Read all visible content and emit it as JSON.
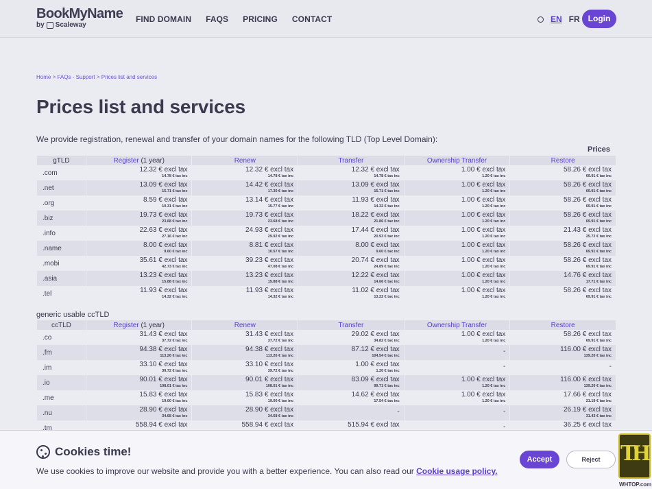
{
  "header": {
    "logo_main": "BookMyName",
    "logo_by": "by",
    "logo_brand": "Scaleway",
    "nav": [
      "FIND DOMAIN",
      "FAQS",
      "PRICING",
      "CONTACT"
    ],
    "lang_en": "EN",
    "lang_fr": "FR",
    "login": "Login"
  },
  "breadcrumb": {
    "home": "Home",
    "faqs": "FAQs - Support",
    "current": "Prices list and services",
    "sep": ">"
  },
  "page_title": "Prices list and services",
  "intro": "We provide registration, renewal and transfer of your domain names for the following TLD (Top Level Domain):",
  "prices_label": "Prices",
  "gtld_table": {
    "headers": {
      "tld": "gTLD",
      "register_link": "Register",
      "register_suffix": " (1 year)",
      "renew": "Renew",
      "transfer": "Transfer",
      "ownership": "Ownership Transfer",
      "restore": "Restore"
    },
    "rows": [
      {
        "tld": ".com",
        "cells": [
          [
            "12.32 € excl tax",
            "14.78 € tax inc"
          ],
          [
            "12.32 € excl tax",
            "14.78 € tax inc"
          ],
          [
            "12.32 € excl tax",
            "14.78 € tax inc"
          ],
          [
            "1.00 € excl tax",
            "1.20 € tax inc"
          ],
          [
            "58.26 € excl tax",
            "69.91 € tax inc"
          ]
        ]
      },
      {
        "tld": ".net",
        "cells": [
          [
            "13.09 € excl tax",
            "15.71 € tax inc"
          ],
          [
            "14.42 € excl tax",
            "17.30 € tax inc"
          ],
          [
            "13.09 € excl tax",
            "15.71 € tax inc"
          ],
          [
            "1.00 € excl tax",
            "1.20 € tax inc"
          ],
          [
            "58.26 € excl tax",
            "69.91 € tax inc"
          ]
        ]
      },
      {
        "tld": ".org",
        "cells": [
          [
            "8.59 € excl tax",
            "10.31 € tax inc"
          ],
          [
            "13.14 € excl tax",
            "15.77 € tax inc"
          ],
          [
            "11.93 € excl tax",
            "14.32 € tax inc"
          ],
          [
            "1.00 € excl tax",
            "1.20 € tax inc"
          ],
          [
            "58.26 € excl tax",
            "69.91 € tax inc"
          ]
        ]
      },
      {
        "tld": ".biz",
        "cells": [
          [
            "19.73 € excl tax",
            "23.68 € tax inc"
          ],
          [
            "19.73 € excl tax",
            "23.68 € tax inc"
          ],
          [
            "18.22 € excl tax",
            "21.86 € tax inc"
          ],
          [
            "1.00 € excl tax",
            "1.20 € tax inc"
          ],
          [
            "58.26 € excl tax",
            "69.91 € tax inc"
          ]
        ]
      },
      {
        "tld": ".info",
        "cells": [
          [
            "22.63 € excl tax",
            "27.16 € tax inc"
          ],
          [
            "24.93 € excl tax",
            "29.92 € tax inc"
          ],
          [
            "17.44 € excl tax",
            "20.93 € tax inc"
          ],
          [
            "1.00 € excl tax",
            "1.20 € tax inc"
          ],
          [
            "21.43 € excl tax",
            "25.72 € tax inc"
          ]
        ]
      },
      {
        "tld": ".name",
        "cells": [
          [
            "8.00 € excl tax",
            "9.60 € tax inc"
          ],
          [
            "8.81 € excl tax",
            "10.57 € tax inc"
          ],
          [
            "8.00 € excl tax",
            "9.60 € tax inc"
          ],
          [
            "1.00 € excl tax",
            "1.20 € tax inc"
          ],
          [
            "58.26 € excl tax",
            "69.91 € tax inc"
          ]
        ]
      },
      {
        "tld": ".mobi",
        "cells": [
          [
            "35.61 € excl tax",
            "42.73 € tax inc"
          ],
          [
            "39.23 € excl tax",
            "47.08 € tax inc"
          ],
          [
            "20.74 € excl tax",
            "24.89 € tax inc"
          ],
          [
            "1.00 € excl tax",
            "1.20 € tax inc"
          ],
          [
            "58.26 € excl tax",
            "69.91 € tax inc"
          ]
        ]
      },
      {
        "tld": ".asia",
        "cells": [
          [
            "13.23 € excl tax",
            "15.88 € tax inc"
          ],
          [
            "13.23 € excl tax",
            "15.88 € tax inc"
          ],
          [
            "12.22 € excl tax",
            "14.66 € tax inc"
          ],
          [
            "1.00 € excl tax",
            "1.20 € tax inc"
          ],
          [
            "14.76 € excl tax",
            "17.71 € tax inc"
          ]
        ]
      },
      {
        "tld": ".tel",
        "cells": [
          [
            "11.93 € excl tax",
            "14.32 € tax inc"
          ],
          [
            "11.93 € excl tax",
            "14.32 € tax inc"
          ],
          [
            "11.02 € excl tax",
            "13.22 € tax inc"
          ],
          [
            "1.00 € excl tax",
            "1.20 € tax inc"
          ],
          [
            "58.26 € excl tax",
            "69.91 € tax inc"
          ]
        ]
      }
    ]
  },
  "cctld_section_label": "generic usable ccTLD",
  "cctld_table": {
    "headers": {
      "tld": "ccTLD",
      "register_link": "Register",
      "register_suffix": " (1 year)",
      "renew": "Renew",
      "transfer": "Transfer",
      "ownership": "Ownership Transfer",
      "restore": "Restore"
    },
    "rows": [
      {
        "tld": ".co",
        "cells": [
          [
            "31.43 € excl tax",
            "37.72 € tax inc"
          ],
          [
            "31.43 € excl tax",
            "37.72 € tax inc"
          ],
          [
            "29.02 € excl tax",
            "34.82 € tax inc"
          ],
          [
            "1.00 € excl tax",
            "1.20 € tax inc"
          ],
          [
            "58.26 € excl tax",
            "69.91 € tax inc"
          ]
        ]
      },
      {
        "tld": ".fm",
        "cells": [
          [
            "94.38 € excl tax",
            "113.26 € tax inc"
          ],
          [
            "94.38 € excl tax",
            "113.26 € tax inc"
          ],
          [
            "87.12 € excl tax",
            "104.54 € tax inc"
          ],
          [
            "-",
            ""
          ],
          [
            "116.00 € excl tax",
            "139.20 € tax inc"
          ]
        ]
      },
      {
        "tld": ".im",
        "cells": [
          [
            "33.10 € excl tax",
            "39.72 € tax inc"
          ],
          [
            "33.10 € excl tax",
            "39.72 € tax inc"
          ],
          [
            "1.00 € excl tax",
            "1.20 € tax inc"
          ],
          [
            "-",
            ""
          ],
          [
            "-",
            ""
          ]
        ]
      },
      {
        "tld": ".io",
        "cells": [
          [
            "90.01 € excl tax",
            "108.01 € tax inc"
          ],
          [
            "90.01 € excl tax",
            "108.01 € tax inc"
          ],
          [
            "83.09 € excl tax",
            "99.71 € tax inc"
          ],
          [
            "1.00 € excl tax",
            "1.20 € tax inc"
          ],
          [
            "116.00 € excl tax",
            "139.20 € tax inc"
          ]
        ]
      },
      {
        "tld": ".me",
        "cells": [
          [
            "15.83 € excl tax",
            "19.00 € tax inc"
          ],
          [
            "15.83 € excl tax",
            "19.00 € tax inc"
          ],
          [
            "14.62 € excl tax",
            "17.54 € tax inc"
          ],
          [
            "1.00 € excl tax",
            "1.20 € tax inc"
          ],
          [
            "17.66 € excl tax",
            "21.19 € tax inc"
          ]
        ]
      },
      {
        "tld": ".nu",
        "cells": [
          [
            "28.90 € excl tax",
            "34.68 € tax inc"
          ],
          [
            "28.90 € excl tax",
            "34.68 € tax inc"
          ],
          [
            "-",
            ""
          ],
          [
            "-",
            ""
          ],
          [
            "26.19 € excl tax",
            "31.43 € tax inc"
          ]
        ]
      },
      {
        "tld": ".tm",
        "cells": [
          [
            "558.94 € excl tax",
            ""
          ],
          [
            "558.94 € excl tax",
            ""
          ],
          [
            "515.94 € excl tax",
            ""
          ],
          [
            "-",
            ""
          ],
          [
            "36.25 € excl tax",
            ""
          ]
        ]
      }
    ]
  },
  "cookie": {
    "title": "Cookies time!",
    "text": "We use cookies to improve our website and provide you with a better experience. You can also read our ",
    "link": "Cookie usage policy.",
    "accept": "Accept",
    "reject": "Reject"
  },
  "watermark": {
    "letters": "TH",
    "label": "WHTOP.com"
  }
}
